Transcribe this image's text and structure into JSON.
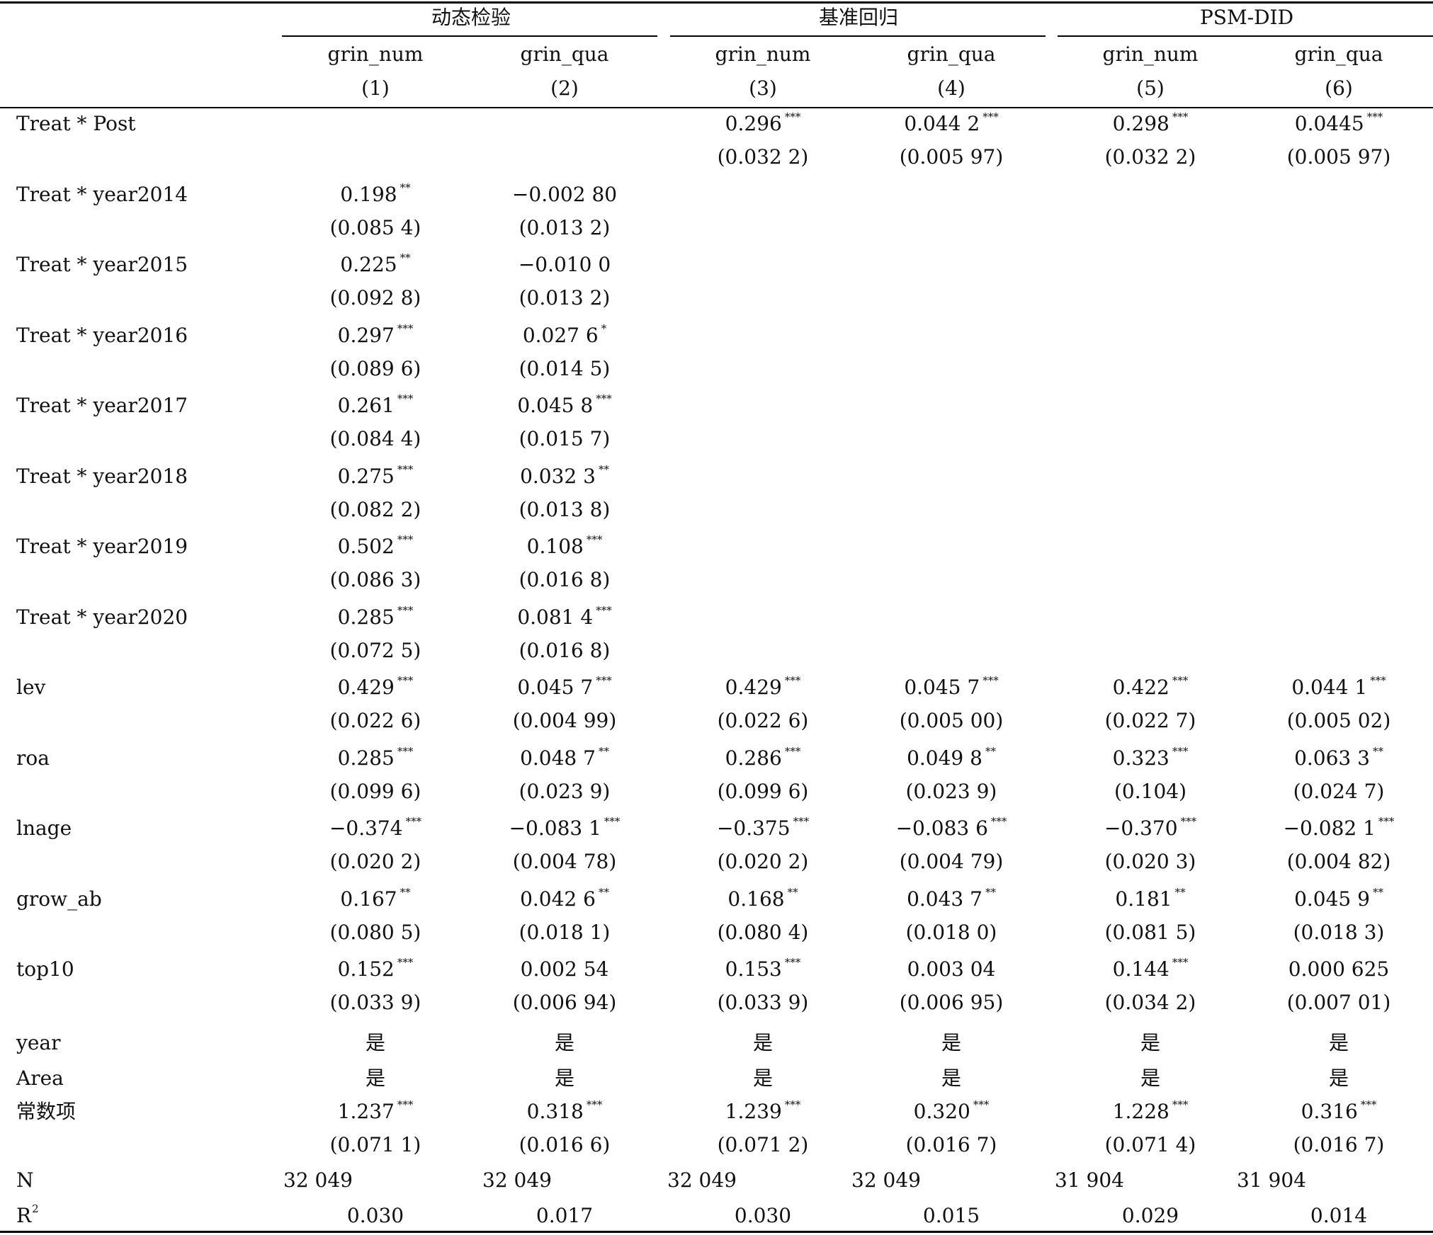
{
  "groups": [
    "动态检验",
    "基准回归",
    "PSM-DID"
  ],
  "columns": [
    {
      "var": "grin_num",
      "num": "(1)"
    },
    {
      "var": "grin_qua",
      "num": "(2)"
    },
    {
      "var": "grin_num",
      "num": "(3)"
    },
    {
      "var": "grin_qua",
      "num": "(4)"
    },
    {
      "var": "grin_num",
      "num": "(5)"
    },
    {
      "var": "grin_qua",
      "num": "(6)"
    }
  ],
  "rows": [
    {
      "label": "Treat * Post",
      "coef": [
        "",
        "",
        "0.296",
        "0.044 2",
        "0.298",
        "0.0445"
      ],
      "stars": [
        "",
        "",
        "***",
        "***",
        "***",
        "***"
      ],
      "se": [
        "",
        "",
        "(0.032 2)",
        "(0.005 97)",
        "(0.032 2)",
        "(0.005 97)"
      ]
    },
    {
      "label": "Treat * year2014",
      "coef": [
        "0.198",
        "−0.002 80",
        "",
        "",
        "",
        ""
      ],
      "stars": [
        "**",
        "",
        "",
        "",
        "",
        ""
      ],
      "se": [
        "(0.085 4)",
        "(0.013 2)",
        "",
        "",
        "",
        ""
      ]
    },
    {
      "label": "Treat *  year2015",
      "coef": [
        "0.225",
        "−0.010 0",
        "",
        "",
        "",
        ""
      ],
      "stars": [
        "**",
        "",
        "",
        "",
        "",
        ""
      ],
      "se": [
        "(0.092 8)",
        "(0.013 2)",
        "",
        "",
        "",
        ""
      ]
    },
    {
      "label": "Treat *  year2016",
      "coef": [
        "0.297",
        "0.027 6",
        "",
        "",
        "",
        ""
      ],
      "stars": [
        "***",
        "*",
        "",
        "",
        "",
        ""
      ],
      "se": [
        "(0.089 6)",
        "(0.014 5)",
        "",
        "",
        "",
        ""
      ]
    },
    {
      "label": "Treat *  year2017",
      "coef": [
        "0.261",
        "0.045 8",
        "",
        "",
        "",
        ""
      ],
      "stars": [
        "***",
        "***",
        "",
        "",
        "",
        ""
      ],
      "se": [
        "(0.084 4)",
        "(0.015 7)",
        "",
        "",
        "",
        ""
      ]
    },
    {
      "label": "Treat *  year2018",
      "coef": [
        "0.275",
        "0.032 3",
        "",
        "",
        "",
        ""
      ],
      "stars": [
        "***",
        "**",
        "",
        "",
        "",
        ""
      ],
      "se": [
        "(0.082 2)",
        "(0.013 8)",
        "",
        "",
        "",
        ""
      ]
    },
    {
      "label": "Treat *  year2019",
      "coef": [
        "0.502",
        "0.108",
        "",
        "",
        "",
        ""
      ],
      "stars": [
        "***",
        "***",
        "",
        "",
        "",
        ""
      ],
      "se": [
        "(0.086 3)",
        "(0.016 8)",
        "",
        "",
        "",
        ""
      ]
    },
    {
      "label": "Treat *  year2020",
      "coef": [
        "0.285",
        "0.081 4",
        "",
        "",
        "",
        ""
      ],
      "stars": [
        "***",
        "***",
        "",
        "",
        "",
        ""
      ],
      "se": [
        "(0.072 5)",
        "(0.016 8)",
        "",
        "",
        "",
        ""
      ]
    },
    {
      "label": "lev",
      "coef": [
        "0.429",
        "0.045 7",
        "0.429",
        "0.045 7",
        "0.422",
        "0.044 1"
      ],
      "stars": [
        "***",
        "***",
        "***",
        "***",
        "***",
        "***"
      ],
      "se": [
        "(0.022 6)",
        "(0.004 99)",
        "(0.022 6)",
        "(0.005 00)",
        "(0.022 7)",
        "(0.005 02)"
      ]
    },
    {
      "label": "roa",
      "coef": [
        "0.285",
        "0.048 7",
        "0.286",
        "0.049 8",
        "0.323",
        "0.063 3"
      ],
      "stars": [
        "***",
        "**",
        "***",
        "**",
        "***",
        "**"
      ],
      "se": [
        "(0.099 6)",
        "(0.023 9)",
        "(0.099 6)",
        "(0.023 9)",
        "(0.104)",
        "(0.024 7)"
      ]
    },
    {
      "label": "lnage",
      "coef": [
        "−0.374",
        "−0.083 1",
        "−0.375",
        "−0.083 6",
        "−0.370",
        "−0.082 1"
      ],
      "stars": [
        "***",
        "***",
        "***",
        "***",
        "***",
        "***"
      ],
      "se": [
        "(0.020 2)",
        "(0.004 78)",
        "(0.020 2)",
        "(0.004 79)",
        "(0.020 3)",
        "(0.004 82)"
      ]
    },
    {
      "label": "grow_ab",
      "coef": [
        "0.167",
        "0.042 6",
        "0.168",
        "0.043 7",
        "0.181",
        "0.045 9"
      ],
      "stars": [
        "**",
        "**",
        "**",
        "**",
        "**",
        "**"
      ],
      "se": [
        "(0.080 5)",
        "(0.018 1)",
        "(0.080 4)",
        "(0.018 0)",
        "(0.081 5)",
        "(0.018 3)"
      ]
    },
    {
      "label": "top10",
      "coef": [
        "0.152",
        "0.002 54",
        "0.153",
        "0.003 04",
        "0.144",
        "0.000 625"
      ],
      "stars": [
        "***",
        "",
        "***",
        "",
        "***",
        ""
      ],
      "se": [
        "(0.033 9)",
        "(0.006 94)",
        "(0.033 9)",
        "(0.006 95)",
        "(0.034 2)",
        "(0.007 01)"
      ]
    }
  ],
  "fixed": [
    {
      "label": "year",
      "vals": [
        "是",
        "是",
        "是",
        "是",
        "是",
        "是"
      ]
    },
    {
      "label": "Area",
      "vals": [
        "是",
        "是",
        "是",
        "是",
        "是",
        "是"
      ]
    }
  ],
  "const": {
    "label": "常数项",
    "coef": [
      "1.237",
      "0.318",
      "1.239",
      "0.320",
      "1.228",
      "0.316"
    ],
    "stars": [
      "***",
      "***",
      "***",
      "***",
      "***",
      "***"
    ],
    "se": [
      "(0.071 1)",
      "(0.016 6)",
      "(0.071 2)",
      "(0.016 7)",
      "(0.071 4)",
      "(0.016 7)"
    ]
  },
  "n": {
    "label": "N",
    "vals": [
      "32 049",
      "32 049",
      "32 049",
      "32 049",
      "31 904",
      "31 904"
    ]
  },
  "r2": {
    "label": "R",
    "sup": "2",
    "vals": [
      "0.030",
      "0.017",
      "0.030",
      "0.015",
      "0.029",
      "0.014"
    ]
  }
}
